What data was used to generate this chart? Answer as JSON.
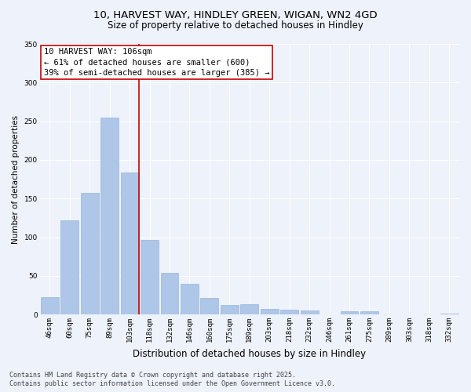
{
  "title_line1": "10, HARVEST WAY, HINDLEY GREEN, WIGAN, WN2 4GD",
  "title_line2": "Size of property relative to detached houses in Hindley",
  "xlabel": "Distribution of detached houses by size in Hindley",
  "ylabel": "Number of detached properties",
  "categories": [
    "46sqm",
    "60sqm",
    "75sqm",
    "89sqm",
    "103sqm",
    "118sqm",
    "132sqm",
    "146sqm",
    "160sqm",
    "175sqm",
    "189sqm",
    "203sqm",
    "218sqm",
    "232sqm",
    "246sqm",
    "261sqm",
    "275sqm",
    "289sqm",
    "303sqm",
    "318sqm",
    "332sqm"
  ],
  "values": [
    22,
    122,
    157,
    255,
    184,
    96,
    54,
    40,
    21,
    12,
    13,
    7,
    6,
    5,
    0,
    4,
    4,
    0,
    0,
    0,
    1
  ],
  "bar_color": "#aec6e8",
  "bar_edge_color": "#8aafd0",
  "vline_color": "#cc0000",
  "annotation_line1": "10 HARVEST WAY: 106sqm",
  "annotation_line2": "← 61% of detached houses are smaller (600)",
  "annotation_line3": "39% of semi-detached houses are larger (385) →",
  "annotation_box_color": "#ffffff",
  "annotation_box_edge": "#cc0000",
  "ylim": [
    0,
    350
  ],
  "yticks": [
    0,
    50,
    100,
    150,
    200,
    250,
    300,
    350
  ],
  "background_color": "#eef2fb",
  "grid_color": "#ffffff",
  "footer_line1": "Contains HM Land Registry data © Crown copyright and database right 2025.",
  "footer_line2": "Contains public sector information licensed under the Open Government Licence v3.0.",
  "fig_width": 6.0,
  "fig_height": 5.0,
  "title1_fontsize": 9.5,
  "title2_fontsize": 8.5,
  "xlabel_fontsize": 8.5,
  "ylabel_fontsize": 7.5,
  "tick_fontsize": 6.5,
  "annotation_fontsize": 7.5,
  "footer_fontsize": 6.0
}
